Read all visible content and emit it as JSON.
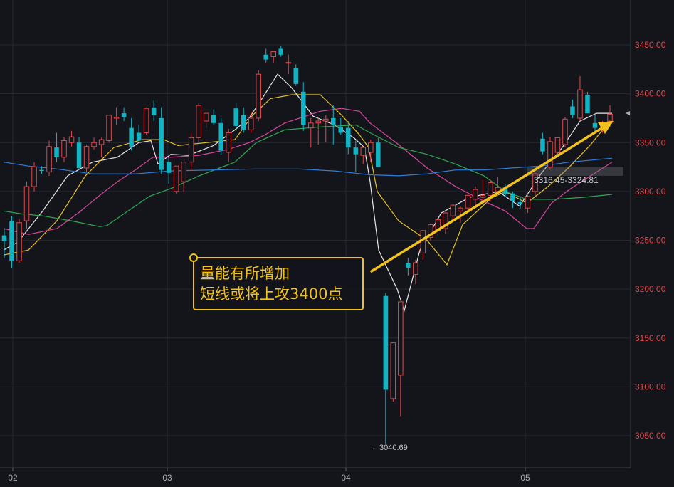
{
  "chart_data": {
    "type": "candlestick",
    "y_axis_labels": [
      "3450.00",
      "3400.00",
      "3350.00",
      "3300.00",
      "3250.00",
      "3200.00",
      "3150.00",
      "3100.00",
      "3050.00"
    ],
    "y_ticks": [
      3450,
      3400,
      3350,
      3300,
      3250,
      3200,
      3150,
      3100,
      3050
    ],
    "x_axis_labels": [
      "02",
      "03",
      "04",
      "05"
    ],
    "ylim": [
      3022,
      3470
    ],
    "colors": {
      "up": "#e2474a",
      "down": "#12b4c4",
      "ma5": "#e8e8e8",
      "ma10": "#e6c12a",
      "ma20": "#d6479c",
      "ma30": "#2fa650",
      "ma60": "#2f7ed8",
      "accent": "#f2c21c"
    },
    "candles": [
      [
        3255,
        3262,
        3232,
        3249
      ],
      [
        3270,
        3275,
        3222,
        3229
      ],
      [
        3229,
        3272,
        3227,
        3268
      ],
      [
        3270,
        3310,
        3262,
        3305
      ],
      [
        3305,
        3330,
        3300,
        3325
      ],
      [
        3322,
        3326,
        3318,
        3321
      ],
      [
        3320,
        3352,
        3316,
        3346
      ],
      [
        3345,
        3360,
        3330,
        3335
      ],
      [
        3335,
        3356,
        3330,
        3352
      ],
      [
        3350,
        3362,
        3346,
        3356
      ],
      [
        3350,
        3356,
        3322,
        3324
      ],
      [
        3324,
        3348,
        3320,
        3346
      ],
      [
        3346,
        3355,
        3343,
        3350
      ],
      [
        3348,
        3355,
        3335,
        3353
      ],
      [
        3352,
        3378,
        3350,
        3378
      ],
      [
        3375,
        3386,
        3368,
        3376
      ],
      [
        3380,
        3386,
        3372,
        3376
      ],
      [
        3365,
        3375,
        3342,
        3346
      ],
      [
        3360,
        3368,
        3352,
        3352
      ],
      [
        3360,
        3386,
        3358,
        3385
      ],
      [
        3386,
        3393,
        3372,
        3378
      ],
      [
        3375,
        3386,
        3318,
        3322
      ],
      [
        3330,
        3336,
        3308,
        3319
      ],
      [
        3300,
        3325,
        3298,
        3326
      ],
      [
        3310,
        3330,
        3300,
        3330
      ],
      [
        3330,
        3360,
        3322,
        3355
      ],
      [
        3355,
        3390,
        3350,
        3388
      ],
      [
        3372,
        3380,
        3365,
        3380
      ],
      [
        3378,
        3384,
        3368,
        3370
      ],
      [
        3370,
        3375,
        3338,
        3342
      ],
      [
        3340,
        3364,
        3330,
        3360
      ],
      [
        3385,
        3391,
        3362,
        3367
      ],
      [
        3378,
        3386,
        3360,
        3363
      ],
      [
        3363,
        3382,
        3360,
        3375
      ],
      [
        3375,
        3424,
        3372,
        3420
      ],
      [
        3440,
        3446,
        3432,
        3435
      ],
      [
        3438,
        3442,
        3432,
        3443
      ],
      [
        3446,
        3449,
        3438,
        3440
      ],
      [
        3432,
        3440,
        3420,
        3432
      ],
      [
        3426,
        3430,
        3408,
        3410
      ],
      [
        3402,
        3412,
        3362,
        3368
      ],
      [
        3365,
        3375,
        3345,
        3370
      ],
      [
        3370,
        3375,
        3348,
        3372
      ],
      [
        3372,
        3378,
        3350,
        3374
      ],
      [
        3375,
        3388,
        3348,
        3368
      ],
      [
        3366,
        3375,
        3358,
        3360
      ],
      [
        3365,
        3372,
        3338,
        3345
      ],
      [
        3345,
        3352,
        3320,
        3338
      ],
      [
        3337,
        3346,
        3328,
        3345
      ],
      [
        3340,
        3353,
        3330,
        3350
      ],
      [
        3350,
        3355,
        3328,
        3325
      ],
      [
        3193,
        3196,
        3042,
        3097
      ],
      [
        3088,
        3145,
        3085,
        3145
      ],
      [
        3112,
        3187,
        3070,
        3187
      ],
      [
        3227,
        3232,
        3214,
        3222
      ],
      [
        3215,
        3230,
        3205,
        3227
      ],
      [
        3237,
        3260,
        3230,
        3260
      ],
      [
        3253,
        3267,
        3250,
        3266
      ],
      [
        3260,
        3272,
        3255,
        3271
      ],
      [
        3262,
        3279,
        3257,
        3278
      ],
      [
        3275,
        3287,
        3270,
        3286
      ],
      [
        3280,
        3285,
        3268,
        3283
      ],
      [
        3283,
        3300,
        3280,
        3296
      ],
      [
        3292,
        3305,
        3285,
        3302
      ],
      [
        3294,
        3312,
        3290,
        3296
      ],
      [
        3296,
        3312,
        3290,
        3309
      ],
      [
        3300,
        3315,
        3296,
        3304
      ],
      [
        3304,
        3308,
        3294,
        3297
      ],
      [
        3298,
        3300,
        3283,
        3290
      ],
      [
        3289,
        3295,
        3282,
        3287
      ],
      [
        3283,
        3298,
        3278,
        3295
      ],
      [
        3300,
        3320,
        3295,
        3318
      ],
      [
        3354,
        3360,
        3338,
        3341
      ],
      [
        3325,
        3356,
        3322,
        3351
      ],
      [
        3340,
        3354,
        3335,
        3355
      ],
      [
        3348,
        3376,
        3345,
        3374
      ],
      [
        3387,
        3394,
        3375,
        3378
      ],
      [
        3375,
        3418,
        3372,
        3404
      ],
      [
        3399,
        3402,
        3380,
        3380
      ],
      [
        3370,
        3378,
        3360,
        3365
      ],
      [
        3370,
        3372,
        3360,
        3370
      ],
      [
        3372,
        3388,
        3370,
        3379
      ]
    ],
    "ma_lines": [
      {
        "color": "ma5",
        "points": [
          [
            5,
            3240
          ],
          [
            25,
            3248
          ],
          [
            60,
            3280
          ],
          [
            95,
            3316
          ],
          [
            130,
            3330
          ],
          [
            165,
            3335
          ],
          [
            195,
            3350
          ],
          [
            212,
            3352
          ],
          [
            222,
            3328
          ],
          [
            240,
            3338
          ],
          [
            265,
            3337
          ],
          [
            300,
            3347
          ],
          [
            330,
            3363
          ],
          [
            350,
            3375
          ],
          [
            370,
            3397
          ],
          [
            390,
            3420
          ],
          [
            410,
            3406
          ],
          [
            440,
            3377
          ],
          [
            470,
            3368
          ],
          [
            497,
            3355
          ],
          [
            512,
            3345
          ],
          [
            520,
            3310
          ],
          [
            532,
            3240
          ],
          [
            558,
            3200
          ],
          [
            568,
            3178
          ],
          [
            590,
            3240
          ],
          [
            620,
            3278
          ],
          [
            660,
            3294
          ],
          [
            700,
            3300
          ],
          [
            730,
            3285
          ],
          [
            760,
            3318
          ],
          [
            790,
            3345
          ],
          [
            815,
            3372
          ],
          [
            838,
            3380
          ],
          [
            860,
            3380
          ]
        ]
      },
      {
        "color": "ma10",
        "points": [
          [
            5,
            3235
          ],
          [
            40,
            3240
          ],
          [
            80,
            3270
          ],
          [
            120,
            3316
          ],
          [
            160,
            3345
          ],
          [
            200,
            3353
          ],
          [
            230,
            3353
          ],
          [
            250,
            3347
          ],
          [
            290,
            3350
          ],
          [
            330,
            3353
          ],
          [
            355,
            3378
          ],
          [
            380,
            3395
          ],
          [
            410,
            3399
          ],
          [
            450,
            3399
          ],
          [
            480,
            3378
          ],
          [
            505,
            3358
          ],
          [
            518,
            3345
          ],
          [
            530,
            3300
          ],
          [
            560,
            3270
          ],
          [
            600,
            3250
          ],
          [
            628,
            3225
          ],
          [
            650,
            3266
          ],
          [
            690,
            3293
          ],
          [
            710,
            3300
          ],
          [
            740,
            3288
          ],
          [
            770,
            3305
          ],
          [
            800,
            3325
          ],
          [
            830,
            3348
          ],
          [
            860,
            3375
          ]
        ]
      },
      {
        "color": "ma20",
        "points": [
          [
            5,
            3262
          ],
          [
            40,
            3256
          ],
          [
            80,
            3262
          ],
          [
            110,
            3278
          ],
          [
            140,
            3296
          ],
          [
            165,
            3310
          ],
          [
            190,
            3322
          ],
          [
            215,
            3335
          ],
          [
            240,
            3335
          ],
          [
            280,
            3337
          ],
          [
            320,
            3343
          ],
          [
            350,
            3350
          ],
          [
            370,
            3357
          ],
          [
            400,
            3370
          ],
          [
            450,
            3382
          ],
          [
            480,
            3385
          ],
          [
            505,
            3382
          ],
          [
            520,
            3370
          ],
          [
            560,
            3348
          ],
          [
            600,
            3324
          ],
          [
            640,
            3305
          ],
          [
            680,
            3290
          ],
          [
            710,
            3280
          ],
          [
            740,
            3262
          ],
          [
            750,
            3262
          ],
          [
            775,
            3288
          ],
          [
            800,
            3302
          ],
          [
            830,
            3316
          ],
          [
            860,
            3330
          ]
        ]
      },
      {
        "color": "ma30",
        "points": [
          [
            5,
            3280
          ],
          [
            30,
            3277
          ],
          [
            60,
            3275
          ],
          [
            100,
            3270
          ],
          [
            140,
            3264
          ],
          [
            150,
            3265
          ],
          [
            180,
            3280
          ],
          [
            210,
            3295
          ],
          [
            240,
            3303
          ],
          [
            280,
            3316
          ],
          [
            330,
            3330
          ],
          [
            360,
            3350
          ],
          [
            400,
            3363
          ],
          [
            450,
            3366
          ],
          [
            500,
            3368
          ],
          [
            520,
            3360
          ],
          [
            560,
            3345
          ],
          [
            600,
            3338
          ],
          [
            640,
            3328
          ],
          [
            680,
            3316
          ],
          [
            710,
            3300
          ],
          [
            740,
            3292
          ],
          [
            780,
            3292
          ],
          [
            820,
            3294
          ],
          [
            860,
            3297
          ]
        ]
      },
      {
        "color": "ma60",
        "points": [
          [
            5,
            3330
          ],
          [
            40,
            3326
          ],
          [
            80,
            3323
          ],
          [
            130,
            3318
          ],
          [
            190,
            3318
          ],
          [
            240,
            3321
          ],
          [
            300,
            3322
          ],
          [
            360,
            3323
          ],
          [
            420,
            3323
          ],
          [
            470,
            3321
          ],
          [
            520,
            3317
          ],
          [
            560,
            3316
          ],
          [
            600,
            3318
          ],
          [
            640,
            3322
          ],
          [
            680,
            3322
          ],
          [
            720,
            3324
          ],
          [
            760,
            3326
          ],
          [
            800,
            3330
          ],
          [
            860,
            3334
          ]
        ]
      }
    ],
    "price_range_label": "3316.45-3324.81",
    "low_marker_label": "←3040.69",
    "annotation": [
      "量能有所增加",
      "短线或将上攻3400点"
    ]
  }
}
